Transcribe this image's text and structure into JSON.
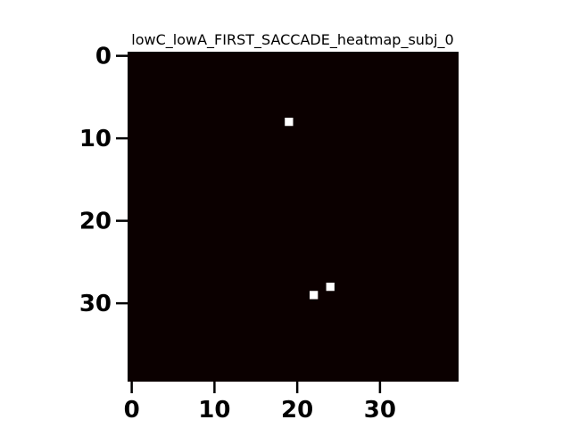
{
  "chart_data": {
    "type": "heatmap",
    "title": "lowC_lowA_FIRST_SACCADE_heatmap_subj_0",
    "xlabel": "",
    "ylabel": "",
    "grid_size": [
      40,
      40
    ],
    "xlim": [
      -0.5,
      39.5
    ],
    "ylim": [
      39.5,
      -0.5
    ],
    "x_ticks": [
      0,
      10,
      20,
      30
    ],
    "y_ticks": [
      0,
      10,
      20,
      30
    ],
    "background_value": 0,
    "background_color": "#0b0000",
    "highlight_color": "#ffffff",
    "points": [
      {
        "x": 19,
        "y": 8,
        "value": 1
      },
      {
        "x": 24,
        "y": 28,
        "value": 1
      },
      {
        "x": 22,
        "y": 29,
        "value": 1
      }
    ]
  }
}
